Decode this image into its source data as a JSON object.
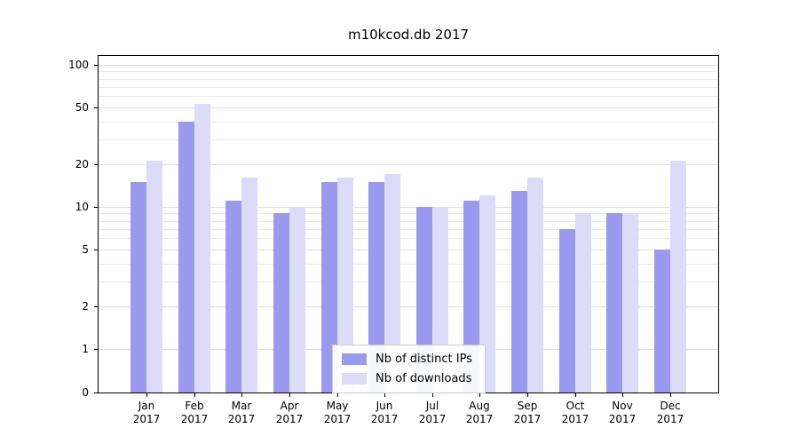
{
  "chart_data": {
    "type": "bar",
    "title": "m10kcod.db 2017",
    "x_categories": [
      "Jan",
      "Feb",
      "Mar",
      "Apr",
      "May",
      "Jun",
      "Jul",
      "Aug",
      "Sep",
      "Oct",
      "Nov",
      "Dec"
    ],
    "x_year_label": "2017",
    "y_scale": "symlog-base10",
    "y_ticks": [
      0,
      1,
      2,
      5,
      10,
      20,
      50,
      100
    ],
    "ylim": [
      0,
      115
    ],
    "grid": true,
    "legend_position": "lower-center",
    "series": [
      {
        "name": "Nb of distinct IPs",
        "color": "#9999ed",
        "values": [
          15,
          40,
          11,
          9,
          15,
          15,
          10,
          11,
          13,
          7,
          9,
          5
        ]
      },
      {
        "name": "Nb of downloads",
        "color": "#dcdcf8",
        "values": [
          21,
          53,
          16,
          10,
          16,
          17,
          10,
          12,
          16,
          9,
          9,
          21
        ]
      }
    ]
  }
}
